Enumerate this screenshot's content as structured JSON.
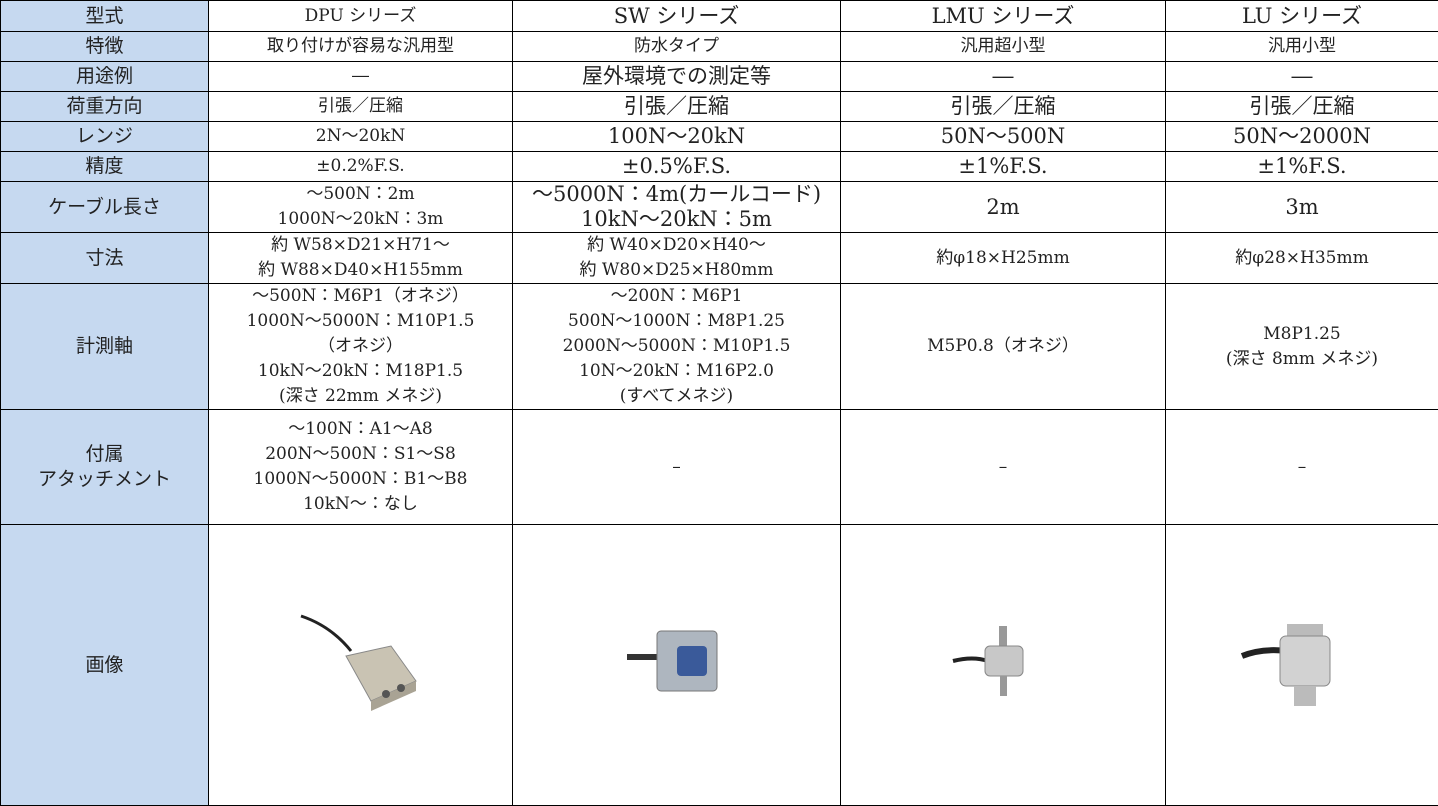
{
  "table": {
    "header": [
      "型式",
      "DPU シリーズ",
      "SW シリーズ",
      "LMU シリーズ",
      "LU シリーズ"
    ],
    "rows": [
      {
        "label": [
          "特徴"
        ],
        "cells": [
          [
            "取り付けが容易な汎用型"
          ],
          [
            "防水タイプ"
          ],
          [
            "汎用超小型"
          ],
          [
            "汎用小型"
          ]
        ]
      },
      {
        "label": [
          "用途例"
        ],
        "cells": [
          [
            "―"
          ],
          [
            "屋外環境での測定等"
          ],
          [
            "―"
          ],
          [
            "―"
          ]
        ]
      },
      {
        "label": [
          "荷重方向"
        ],
        "cells": [
          [
            "引張／圧縮"
          ],
          [
            "引張／圧縮"
          ],
          [
            "引張／圧縮"
          ],
          [
            "引張／圧縮"
          ]
        ]
      },
      {
        "label": [
          "レンジ"
        ],
        "cells": [
          [
            "2N～20kN"
          ],
          [
            "100N～20kN"
          ],
          [
            "50N～500N"
          ],
          [
            "50N～2000N"
          ]
        ]
      },
      {
        "label": [
          "精度"
        ],
        "cells": [
          [
            "±0.2%F.S."
          ],
          [
            "±0.5%F.S."
          ],
          [
            "±1%F.S."
          ],
          [
            "±1%F.S."
          ]
        ]
      },
      {
        "label": [
          "ケーブル長さ"
        ],
        "cells": [
          [
            "～500N：2m",
            "1000N～20kN：3m"
          ],
          [
            "～5000N：4m(カールコード)",
            "10kN～20kN：5m"
          ],
          [
            "2m"
          ],
          [
            "3m"
          ]
        ]
      },
      {
        "label": [
          "寸法"
        ],
        "cells": [
          [
            "約 W58×D21×H71～",
            "約 W88×D40×H155mm"
          ],
          [
            "約 W40×D20×H40～",
            "約 W80×D25×H80mm"
          ],
          [
            "約φ18×H25mm"
          ],
          [
            "約φ28×H35mm"
          ]
        ]
      },
      {
        "label": [
          "計測軸"
        ],
        "cells": [
          [
            "～500N：M6P1（オネジ）",
            "1000N～5000N：M10P1.5",
            "（オネジ）",
            "10kN～20kN：M18P1.5",
            "(深さ 22mm メネジ)"
          ],
          [
            "～200N：M6P1",
            "500N～1000N：M8P1.25",
            "2000N～5000N：M10P1.5",
            "10N～20kN：M16P2.0",
            "(すべてメネジ)"
          ],
          [
            "M5P0.8（オネジ）"
          ],
          [
            "M8P1.25",
            "(深さ 8mm メネジ)"
          ]
        ]
      },
      {
        "label": [
          "付属",
          "アタッチメント"
        ],
        "cells": [
          [
            "～100N：A1～A8",
            "200N～500N：S1～S8",
            "1000N～5000N：B1～B8",
            "10kN～：なし"
          ],
          [
            "–"
          ],
          [
            "–"
          ],
          [
            "–"
          ]
        ]
      },
      {
        "label": [
          "画像"
        ],
        "cells": []
      }
    ]
  }
}
